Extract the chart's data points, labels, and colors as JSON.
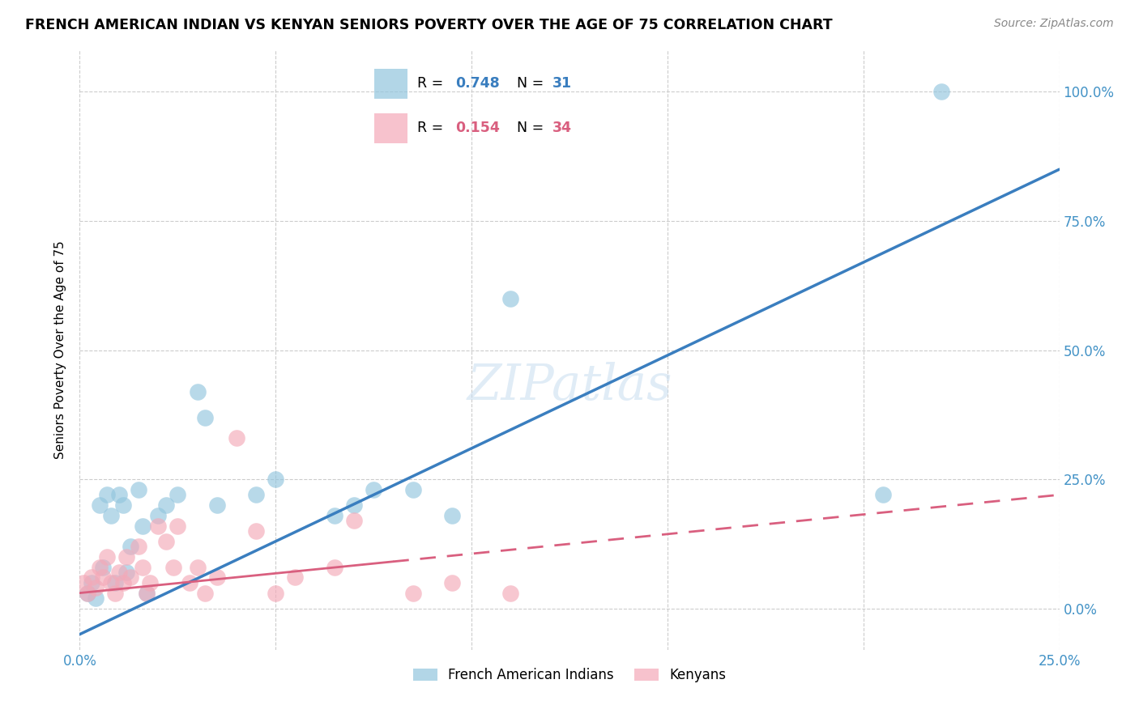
{
  "title": "FRENCH AMERICAN INDIAN VS KENYAN SENIORS POVERTY OVER THE AGE OF 75 CORRELATION CHART",
  "source": "Source: ZipAtlas.com",
  "ylabel": "Seniors Poverty Over the Age of 75",
  "yticks": [
    "0.0%",
    "25.0%",
    "50.0%",
    "75.0%",
    "100.0%"
  ],
  "ytick_vals": [
    0,
    25,
    50,
    75,
    100
  ],
  "xlim": [
    0,
    25
  ],
  "ylim": [
    -8,
    108
  ],
  "watermark": "ZIPatlas",
  "blue_color": "#92c5de",
  "pink_color": "#f4a9b8",
  "line_blue": "#3a7ebf",
  "line_pink": "#d95f7f",
  "french_x": [
    0.2,
    0.3,
    0.4,
    0.5,
    0.6,
    0.7,
    0.8,
    0.9,
    1.0,
    1.1,
    1.2,
    1.3,
    1.5,
    1.6,
    1.7,
    2.0,
    2.2,
    2.5,
    3.0,
    3.2,
    3.5,
    4.5,
    5.0,
    6.5,
    7.0,
    7.5,
    8.5,
    9.5,
    11.0,
    20.5,
    22.0
  ],
  "french_y": [
    3,
    5,
    2,
    20,
    8,
    22,
    18,
    5,
    22,
    20,
    7,
    12,
    23,
    16,
    3,
    18,
    20,
    22,
    42,
    37,
    20,
    22,
    25,
    18,
    20,
    23,
    23,
    18,
    60,
    22,
    100
  ],
  "kenyan_x": [
    0.1,
    0.2,
    0.3,
    0.4,
    0.5,
    0.6,
    0.7,
    0.8,
    0.9,
    1.0,
    1.1,
    1.2,
    1.3,
    1.5,
    1.6,
    1.7,
    1.8,
    2.0,
    2.2,
    2.4,
    2.5,
    2.8,
    3.0,
    3.2,
    3.5,
    4.0,
    4.5,
    5.0,
    5.5,
    6.5,
    7.0,
    8.5,
    9.5,
    11.0
  ],
  "kenyan_y": [
    5,
    3,
    6,
    4,
    8,
    6,
    10,
    5,
    3,
    7,
    5,
    10,
    6,
    12,
    8,
    3,
    5,
    16,
    13,
    8,
    16,
    5,
    8,
    3,
    6,
    33,
    15,
    3,
    6,
    8,
    17,
    3,
    5,
    3
  ],
  "blue_line_x0": 0,
  "blue_line_y0": -5,
  "blue_line_x1": 25,
  "blue_line_y1": 85,
  "pink_line_x0": 0,
  "pink_line_y0": 3,
  "pink_line_x1": 25,
  "pink_line_y1": 22
}
